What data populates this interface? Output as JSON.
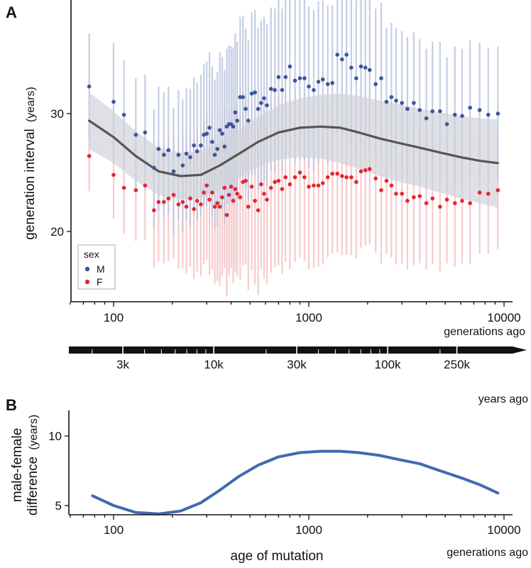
{
  "panel_a_letter": "A",
  "panel_b_letter": "B",
  "colors": {
    "male": "#3b5699",
    "female": "#e3262f",
    "male_bar": "#bcc6df",
    "female_bar": "#f5c2c4",
    "ribbon": "#d0d3da",
    "smooth_line": "#555555",
    "curve_b": "#4169b0",
    "arrow": "#111111"
  },
  "timeline": {
    "tick_labels": [
      "3k",
      "10k",
      "30k",
      "100k",
      "250k"
    ],
    "tick_values_years": [
      3000,
      10000,
      30000,
      100000,
      250000
    ],
    "unit_label": "years ago"
  },
  "chart_data": [
    {
      "type": "scatter",
      "panel": "A",
      "ylabel_main": "generation interval",
      "ylabel_unit": "(years)",
      "xlabel": "generations ago",
      "x_scale": "log",
      "xlim": [
        60,
        10000
      ],
      "ylim": [
        15,
        38
      ],
      "x_tick_values": [
        100,
        1000,
        10000
      ],
      "x_tick_labels": [
        "100",
        "1000",
        "10000"
      ],
      "y_tick_values": [
        20,
        30
      ],
      "y_tick_labels": [
        "20",
        "30"
      ],
      "legend": {
        "title": "sex",
        "entries": [
          "M",
          "F"
        ],
        "placement": "bottom-left"
      },
      "series": [
        {
          "name": "M",
          "x": [
            75,
            100,
            113,
            130,
            145,
            161,
            170,
            181,
            191,
            203,
            215,
            226,
            236,
            247,
            258,
            268,
            280,
            290,
            300,
            310,
            320,
            330,
            340,
            350,
            360,
            370,
            380,
            390,
            400,
            410,
            420,
            430,
            445,
            460,
            475,
            490,
            510,
            530,
            550,
            570,
            590,
            610,
            640,
            670,
            700,
            730,
            760,
            800,
            850,
            900,
            950,
            1000,
            1060,
            1120,
            1180,
            1250,
            1320,
            1400,
            1480,
            1560,
            1650,
            1750,
            1850,
            1950,
            2050,
            2200,
            2350,
            2500,
            2650,
            2800,
            3000,
            3200,
            3450,
            3700,
            4000,
            4300,
            4700,
            5100,
            5600,
            6100,
            6700,
            7500,
            8300,
            9300
          ],
          "y": [
            32.3,
            31.0,
            29.9,
            28.2,
            28.4,
            25.4,
            27.0,
            26.5,
            26.9,
            25.1,
            26.5,
            25.6,
            26.6,
            26.3,
            27.3,
            26.8,
            27.3,
            28.2,
            28.3,
            28.8,
            27.6,
            26.5,
            27.0,
            28.6,
            28.3,
            27.2,
            28.9,
            29.1,
            29.1,
            28.9,
            30.1,
            29.4,
            31.4,
            31.4,
            30.4,
            29.4,
            31.7,
            31.8,
            30.4,
            30.9,
            31.3,
            30.7,
            32.1,
            32.0,
            33.1,
            32.0,
            33.1,
            34.0,
            32.8,
            33.0,
            33.0,
            32.3,
            32.0,
            32.7,
            32.9,
            32.5,
            32.6,
            35.0,
            34.6,
            35.0,
            33.9,
            33.0,
            34.0,
            33.9,
            33.7,
            32.5,
            33.0,
            31.0,
            31.4,
            31.1,
            30.9,
            30.4,
            30.9,
            30.3,
            29.6,
            30.2,
            30.2,
            29.1,
            29.9,
            29.8,
            30.5,
            30.3,
            29.9,
            30.0
          ],
          "error_low": [
            27.8,
            26.0,
            25.3,
            23.4,
            23.5,
            20.4,
            21.7,
            21.2,
            21.5,
            19.7,
            21.0,
            20.0,
            21.0,
            20.5,
            21.5,
            21.0,
            21.3,
            22.2,
            22.2,
            22.4,
            21.2,
            20.1,
            20.5,
            22.0,
            21.8,
            20.7,
            22.3,
            22.4,
            22.5,
            22.2,
            23.4,
            22.7,
            24.6,
            24.5,
            23.6,
            22.6,
            24.8,
            24.8,
            23.5,
            23.9,
            24.4,
            23.8,
            25.2,
            25.1,
            26.1,
            25.1,
            26.1,
            27.0,
            25.9,
            26.1,
            26.1,
            25.5,
            25.2,
            25.9,
            26.2,
            25.8,
            26.0,
            28.3,
            27.9,
            28.3,
            27.3,
            26.4,
            27.4,
            27.3,
            27.2,
            26.1,
            26.6,
            24.7,
            25.1,
            24.9,
            24.8,
            24.3,
            24.9,
            24.3,
            23.7,
            24.3,
            24.3,
            23.4,
            24.1,
            24.1,
            24.8,
            24.6,
            24.2,
            24.3
          ],
          "error_high": [
            36.8,
            36.0,
            34.5,
            33.0,
            33.3,
            30.4,
            32.3,
            31.8,
            32.3,
            30.5,
            32.0,
            31.2,
            32.2,
            32.1,
            33.1,
            32.6,
            33.3,
            34.2,
            34.4,
            35.2,
            34.0,
            32.9,
            33.5,
            35.2,
            34.8,
            33.7,
            35.5,
            35.8,
            35.7,
            35.6,
            36.8,
            36.1,
            38.2,
            38.3,
            37.2,
            36.2,
            38.6,
            38.8,
            37.3,
            37.9,
            38.2,
            37.6,
            39.0,
            38.9,
            40.1,
            38.9,
            40.1,
            41.0,
            39.7,
            39.9,
            39.9,
            39.1,
            38.8,
            39.5,
            39.6,
            39.2,
            39.2,
            41.7,
            41.3,
            41.7,
            40.5,
            39.6,
            40.6,
            40.5,
            40.2,
            38.9,
            39.4,
            37.3,
            37.7,
            37.3,
            37.0,
            36.5,
            36.9,
            36.3,
            35.5,
            36.1,
            36.1,
            34.8,
            35.7,
            35.5,
            36.2,
            36.0,
            35.6,
            35.7
          ]
        },
        {
          "name": "F",
          "x": [
            75,
            100,
            113,
            130,
            145,
            161,
            170,
            181,
            191,
            203,
            215,
            226,
            236,
            247,
            258,
            268,
            280,
            290,
            300,
            310,
            320,
            330,
            340,
            350,
            360,
            370,
            380,
            390,
            400,
            410,
            420,
            430,
            445,
            460,
            475,
            490,
            510,
            530,
            550,
            570,
            590,
            610,
            640,
            670,
            700,
            730,
            760,
            800,
            850,
            900,
            950,
            1000,
            1060,
            1120,
            1180,
            1250,
            1320,
            1400,
            1480,
            1560,
            1650,
            1750,
            1850,
            1950,
            2050,
            2200,
            2350,
            2500,
            2650,
            2800,
            3000,
            3200,
            3450,
            3700,
            4000,
            4300,
            4700,
            5100,
            5600,
            6100,
            6700,
            7500,
            8300,
            9300
          ],
          "y": [
            26.4,
            24.8,
            23.7,
            23.5,
            23.9,
            21.8,
            22.5,
            22.5,
            22.8,
            23.1,
            22.3,
            22.5,
            22.1,
            22.8,
            21.9,
            22.6,
            22.3,
            23.3,
            23.9,
            22.7,
            23.3,
            22.1,
            22.4,
            22.1,
            22.9,
            23.7,
            21.4,
            23.1,
            23.8,
            22.6,
            23.6,
            23.2,
            22.9,
            24.2,
            24.3,
            22.1,
            23.8,
            22.6,
            21.8,
            24.0,
            23.2,
            22.7,
            23.7,
            24.2,
            24.3,
            23.6,
            24.6,
            24.0,
            24.6,
            25.0,
            24.6,
            23.8,
            23.9,
            23.9,
            24.1,
            24.6,
            24.9,
            24.9,
            24.7,
            24.6,
            24.6,
            24.2,
            25.1,
            25.2,
            25.3,
            24.5,
            23.5,
            24.3,
            23.9,
            23.2,
            23.2,
            22.6,
            22.9,
            23.0,
            22.4,
            22.8,
            22.1,
            22.7,
            22.4,
            22.6,
            22.4,
            23.3,
            23.2,
            23.5
          ],
          "error_low": [
            23.4,
            21.1,
            19.8,
            19.2,
            19.3,
            16.9,
            17.4,
            17.3,
            17.5,
            17.7,
            16.8,
            16.9,
            16.4,
            17.0,
            16.0,
            16.6,
            16.2,
            17.2,
            17.6,
            16.3,
            16.8,
            15.5,
            15.8,
            15.4,
            16.2,
            16.9,
            14.5,
            16.2,
            16.9,
            15.6,
            16.6,
            16.2,
            15.9,
            17.1,
            17.2,
            15.0,
            16.7,
            15.5,
            14.6,
            16.8,
            16.0,
            15.5,
            16.5,
            17.0,
            17.1,
            16.4,
            17.4,
            16.8,
            17.4,
            17.8,
            17.5,
            16.8,
            16.9,
            17.0,
            17.2,
            17.8,
            18.1,
            18.2,
            18.0,
            18.0,
            18.0,
            17.7,
            18.6,
            18.8,
            18.9,
            18.2,
            17.3,
            18.1,
            17.8,
            17.2,
            17.3,
            16.8,
            17.1,
            17.3,
            16.8,
            17.2,
            16.6,
            17.3,
            17.0,
            17.3,
            17.2,
            18.1,
            18.1,
            18.5
          ],
          "error_high": [
            29.4,
            28.5,
            27.6,
            27.8,
            28.5,
            26.7,
            27.6,
            27.7,
            28.1,
            28.5,
            27.8,
            28.1,
            27.8,
            28.6,
            27.8,
            28.6,
            28.4,
            29.4,
            30.2,
            29.1,
            29.8,
            28.7,
            29.0,
            28.8,
            29.6,
            30.5,
            28.3,
            30.0,
            30.7,
            29.6,
            30.6,
            30.2,
            29.9,
            31.3,
            31.4,
            29.2,
            30.9,
            29.7,
            29.0,
            31.2,
            30.4,
            29.9,
            30.9,
            31.4,
            31.5,
            30.8,
            31.8,
            31.2,
            31.8,
            32.2,
            31.7,
            30.8,
            30.9,
            30.8,
            31.0,
            31.4,
            31.7,
            31.6,
            31.4,
            31.2,
            31.2,
            30.7,
            31.6,
            31.6,
            31.7,
            30.8,
            29.7,
            30.5,
            30.0,
            29.2,
            29.1,
            28.4,
            28.7,
            28.7,
            28.0,
            28.4,
            27.6,
            28.1,
            27.8,
            27.9,
            27.6,
            28.5,
            28.3,
            28.5
          ]
        },
        {
          "type": "line",
          "role": "smoothed average with confidence band",
          "x": [
            75,
            100,
            130,
            170,
            220,
            280,
            350,
            440,
            550,
            700,
            900,
            1150,
            1450,
            1800,
            2300,
            2900,
            3700,
            4700,
            6000,
            7500,
            9300
          ],
          "y": [
            29.4,
            28.0,
            26.4,
            25.1,
            24.7,
            24.8,
            25.6,
            26.6,
            27.6,
            28.4,
            28.8,
            28.9,
            28.8,
            28.4,
            27.9,
            27.5,
            27.1,
            26.7,
            26.3,
            26.0,
            25.8
          ],
          "band_low": [
            27.0,
            25.8,
            24.3,
            23.1,
            22.7,
            22.8,
            23.6,
            24.6,
            25.5,
            26.1,
            26.3,
            26.2,
            25.8,
            25.3,
            24.7,
            24.2,
            23.8,
            23.3,
            22.8,
            22.4,
            22.0
          ],
          "band_high": [
            31.8,
            30.2,
            28.5,
            27.1,
            26.7,
            26.8,
            27.6,
            28.6,
            29.7,
            30.7,
            31.3,
            31.6,
            31.7,
            31.5,
            31.1,
            30.8,
            30.4,
            30.1,
            29.8,
            29.6,
            29.5
          ]
        }
      ]
    },
    {
      "type": "line",
      "panel": "B",
      "ylabel_main": "male-female",
      "ylabel_second": "difference",
      "ylabel_unit": "(years)",
      "xlabel": "age of mutation",
      "x_unit_label": "generations ago",
      "x_scale": "log",
      "xlim": [
        60,
        10000
      ],
      "ylim": [
        3,
        11
      ],
      "x_tick_values": [
        100,
        1000,
        10000
      ],
      "x_tick_labels": [
        "100",
        "1000",
        "10000"
      ],
      "y_tick_values": [
        5,
        10
      ],
      "y_tick_labels": [
        "5",
        "10"
      ],
      "series": [
        {
          "x": [
            78,
            100,
            130,
            170,
            220,
            280,
            350,
            440,
            550,
            700,
            900,
            1150,
            1450,
            1800,
            2300,
            2900,
            3700,
            4700,
            6000,
            7500,
            9300
          ],
          "y": [
            5.7,
            5.0,
            4.5,
            4.4,
            4.6,
            5.2,
            6.1,
            7.1,
            7.9,
            8.5,
            8.8,
            8.9,
            8.9,
            8.8,
            8.6,
            8.3,
            8.0,
            7.5,
            7.0,
            6.5,
            5.9
          ]
        }
      ]
    }
  ]
}
